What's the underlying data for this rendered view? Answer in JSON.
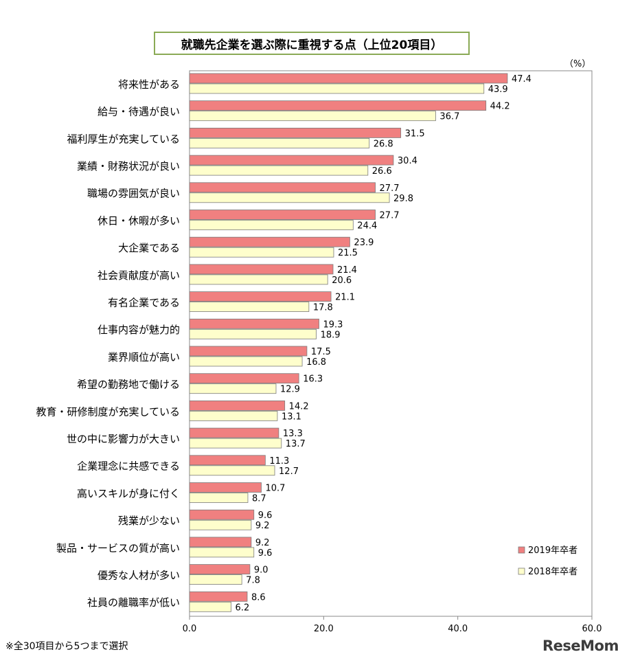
{
  "chart_data": {
    "type": "bar",
    "orientation": "horizontal",
    "title": "就職先企業を選ぶ際に重視する点（上位20項目）",
    "unit": "（%）",
    "categories": [
      "将来性がある",
      "給与・待遇が良い",
      "福利厚生が充実している",
      "業績・財務状況が良い",
      "職場の雰囲気が良い",
      "休日・休暇が多い",
      "大企業である",
      "社会貢献度が高い",
      "有名企業である",
      "仕事内容が魅力的",
      "業界順位が高い",
      "希望の勤務地で働ける",
      "教育・研修制度が充実している",
      "世の中に影響力が大きい",
      "企業理念に共感できる",
      "高いスキルが身に付く",
      "残業が少ない",
      "製品・サービスの質が高い",
      "優秀な人材が多い",
      "社員の離職率が低い"
    ],
    "series": [
      {
        "name": "2019年卒者",
        "color": "#f08080",
        "values": [
          47.4,
          44.2,
          31.5,
          30.4,
          27.7,
          27.7,
          23.9,
          21.4,
          21.1,
          19.3,
          17.5,
          16.3,
          14.2,
          13.3,
          11.3,
          10.7,
          9.6,
          9.2,
          9.0,
          8.6
        ]
      },
      {
        "name": "2018年卒者",
        "color": "#fefecc",
        "values": [
          43.9,
          36.7,
          26.8,
          26.6,
          29.8,
          24.4,
          21.5,
          20.6,
          17.8,
          18.9,
          16.8,
          12.9,
          13.1,
          13.7,
          12.7,
          8.7,
          9.2,
          9.6,
          7.8,
          6.2
        ]
      }
    ],
    "xlim": [
      0,
      60
    ],
    "xticks": [
      "0.0",
      "20.0",
      "40.0",
      "60.0"
    ],
    "legend_position": "bottom-right",
    "grid": false
  },
  "footnote": "※全30項目から5つまで選択",
  "logo": "ReseMom"
}
